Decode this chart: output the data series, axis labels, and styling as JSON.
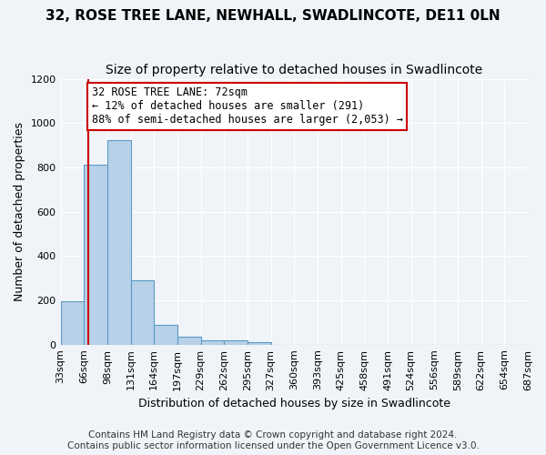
{
  "title1": "32, ROSE TREE LANE, NEWHALL, SWADLINCOTE, DE11 0LN",
  "title2": "Size of property relative to detached houses in Swadlincote",
  "xlabel": "Distribution of detached houses by size in Swadlincote",
  "ylabel": "Number of detached properties",
  "bin_edges": [
    33,
    66,
    99,
    132,
    165,
    198,
    231,
    264,
    297,
    330,
    363,
    396,
    429,
    462,
    495,
    528,
    561,
    594,
    627,
    660,
    693
  ],
  "bin_labels": [
    "33sqm",
    "66sqm",
    "98sqm",
    "131sqm",
    "164sqm",
    "197sqm",
    "229sqm",
    "262sqm",
    "295sqm",
    "327sqm",
    "360sqm",
    "393sqm",
    "425sqm",
    "458sqm",
    "491sqm",
    "524sqm",
    "556sqm",
    "589sqm",
    "622sqm",
    "654sqm",
    "687sqm"
  ],
  "bar_heights": [
    195,
    810,
    925,
    290,
    88,
    35,
    20,
    18,
    12,
    0,
    0,
    0,
    0,
    0,
    0,
    0,
    0,
    0,
    0,
    0
  ],
  "bar_color": "#b8d0e8",
  "bar_edge_color": "#5a9ac5",
  "vline_x": 72,
  "vline_color": "#cc0000",
  "annotation_text": "32 ROSE TREE LANE: 72sqm\n← 12% of detached houses are smaller (291)\n88% of semi-detached houses are larger (2,053) →",
  "annotation_box_color": "#ffffff",
  "annotation_box_edge_color": "#cc0000",
  "ylim": [
    0,
    1200
  ],
  "yticks": [
    0,
    200,
    400,
    600,
    800,
    1000,
    1200
  ],
  "footnote1": "Contains HM Land Registry data © Crown copyright and database right 2024.",
  "footnote2": "Contains public sector information licensed under the Open Government Licence v3.0.",
  "bg_color": "#f0f4f8",
  "plot_bg_color": "#f0f4f8",
  "title_fontsize": 11,
  "subtitle_fontsize": 10,
  "axis_label_fontsize": 9,
  "tick_fontsize": 8,
  "annotation_fontsize": 8.5,
  "footnote_fontsize": 7.5
}
